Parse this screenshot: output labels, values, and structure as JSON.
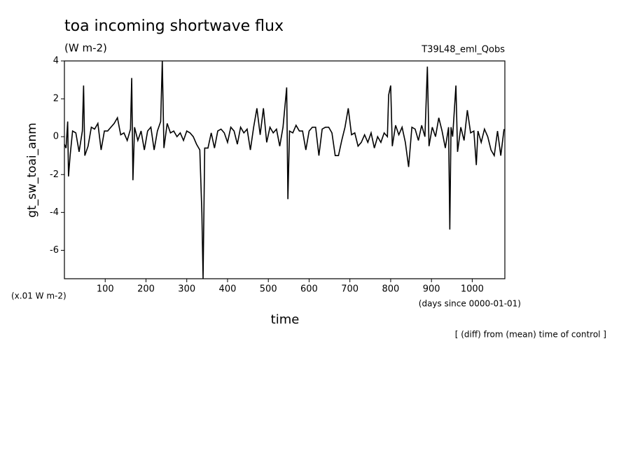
{
  "chart_data": {
    "type": "line",
    "title": "toa incoming shortwave flux",
    "subtitle": "(W m-2)",
    "run_label": "T39L48_eml_Qobs",
    "ylabel": "gt_sw_toai_anm",
    "y_unit_note": "(x.01 W m-2)",
    "x_unit_note": "(days since 0000-01-01)",
    "xlabel": "time",
    "footnote": "[ (diff) from (mean) time of control ]",
    "xlim": [
      0,
      1080
    ],
    "ylim": [
      -7.5,
      4
    ],
    "xticks": [
      100,
      200,
      300,
      400,
      500,
      600,
      700,
      800,
      900,
      1000
    ],
    "yticks": [
      -6,
      -4,
      -2,
      0,
      2,
      4
    ],
    "series": [
      {
        "color": "#000000",
        "x": [
          0,
          4,
          8,
          10,
          14,
          20,
          28,
          36,
          44,
          47,
          50,
          58,
          66,
          74,
          82,
          90,
          98,
          106,
          114,
          122,
          130,
          138,
          146,
          154,
          162,
          165,
          168,
          172,
          180,
          188,
          196,
          204,
          212,
          220,
          228,
          236,
          240,
          244,
          252,
          260,
          268,
          276,
          284,
          292,
          300,
          308,
          316,
          324,
          332,
          337,
          340,
          344,
          352,
          360,
          368,
          376,
          384,
          392,
          400,
          408,
          416,
          424,
          432,
          440,
          448,
          456,
          464,
          472,
          480,
          488,
          496,
          504,
          512,
          520,
          528,
          536,
          545,
          548,
          552,
          560,
          568,
          576,
          584,
          592,
          600,
          608,
          616,
          624,
          632,
          640,
          648,
          656,
          664,
          672,
          680,
          688,
          696,
          704,
          712,
          720,
          728,
          736,
          744,
          752,
          760,
          768,
          776,
          784,
          792,
          795,
          800,
          804,
          812,
          820,
          828,
          836,
          844,
          852,
          860,
          868,
          876,
          884,
          890,
          894,
          902,
          910,
          918,
          926,
          934,
          942,
          945,
          948,
          952,
          960,
          964,
          972,
          980,
          988,
          996,
          1004,
          1010,
          1014,
          1022,
          1030,
          1038,
          1046,
          1054,
          1062,
          1070,
          1078
        ],
        "values": [
          -0.4,
          -0.6,
          0.8,
          -2.1,
          -1.0,
          0.3,
          0.2,
          -0.8,
          0.3,
          2.7,
          -1.0,
          -0.5,
          0.5,
          0.4,
          0.7,
          -0.7,
          0.3,
          0.3,
          0.5,
          0.7,
          1.0,
          0.1,
          0.2,
          -0.2,
          0.4,
          3.1,
          -2.3,
          0.5,
          -0.2,
          0.3,
          -0.7,
          0.3,
          0.5,
          -0.7,
          0.3,
          0.8,
          4.0,
          -0.6,
          0.7,
          0.2,
          0.3,
          0.0,
          0.2,
          -0.2,
          0.3,
          0.2,
          0.0,
          -0.4,
          -0.7,
          -4.0,
          -7.5,
          -0.6,
          -0.6,
          0.2,
          -0.6,
          0.3,
          0.4,
          0.2,
          -0.3,
          0.5,
          0.3,
          -0.4,
          0.5,
          0.2,
          0.4,
          -0.7,
          0.5,
          1.5,
          0.1,
          1.5,
          -0.3,
          0.5,
          0.2,
          0.4,
          -0.5,
          0.5,
          2.6,
          -3.3,
          0.3,
          0.2,
          0.6,
          0.3,
          0.3,
          -0.7,
          0.3,
          0.5,
          0.5,
          -1.0,
          0.4,
          0.5,
          0.5,
          0.2,
          -1.0,
          -1.0,
          -0.2,
          0.5,
          1.5,
          0.1,
          0.2,
          -0.5,
          -0.3,
          0.1,
          -0.3,
          0.2,
          -0.6,
          0.0,
          -0.3,
          0.2,
          0.0,
          2.2,
          2.7,
          -0.5,
          0.6,
          0.1,
          0.5,
          -0.3,
          -1.6,
          0.5,
          0.4,
          -0.2,
          0.6,
          0.0,
          3.7,
          -0.5,
          0.5,
          0.0,
          1.0,
          0.3,
          -0.6,
          0.5,
          -4.9,
          0.5,
          0.0,
          2.7,
          -0.8,
          0.5,
          -0.2,
          1.4,
          0.2,
          0.3,
          -1.5,
          0.3,
          -0.3,
          0.4,
          0.0,
          -0.7,
          -1.0,
          0.3,
          -1.0,
          0.4
        ]
      }
    ]
  }
}
